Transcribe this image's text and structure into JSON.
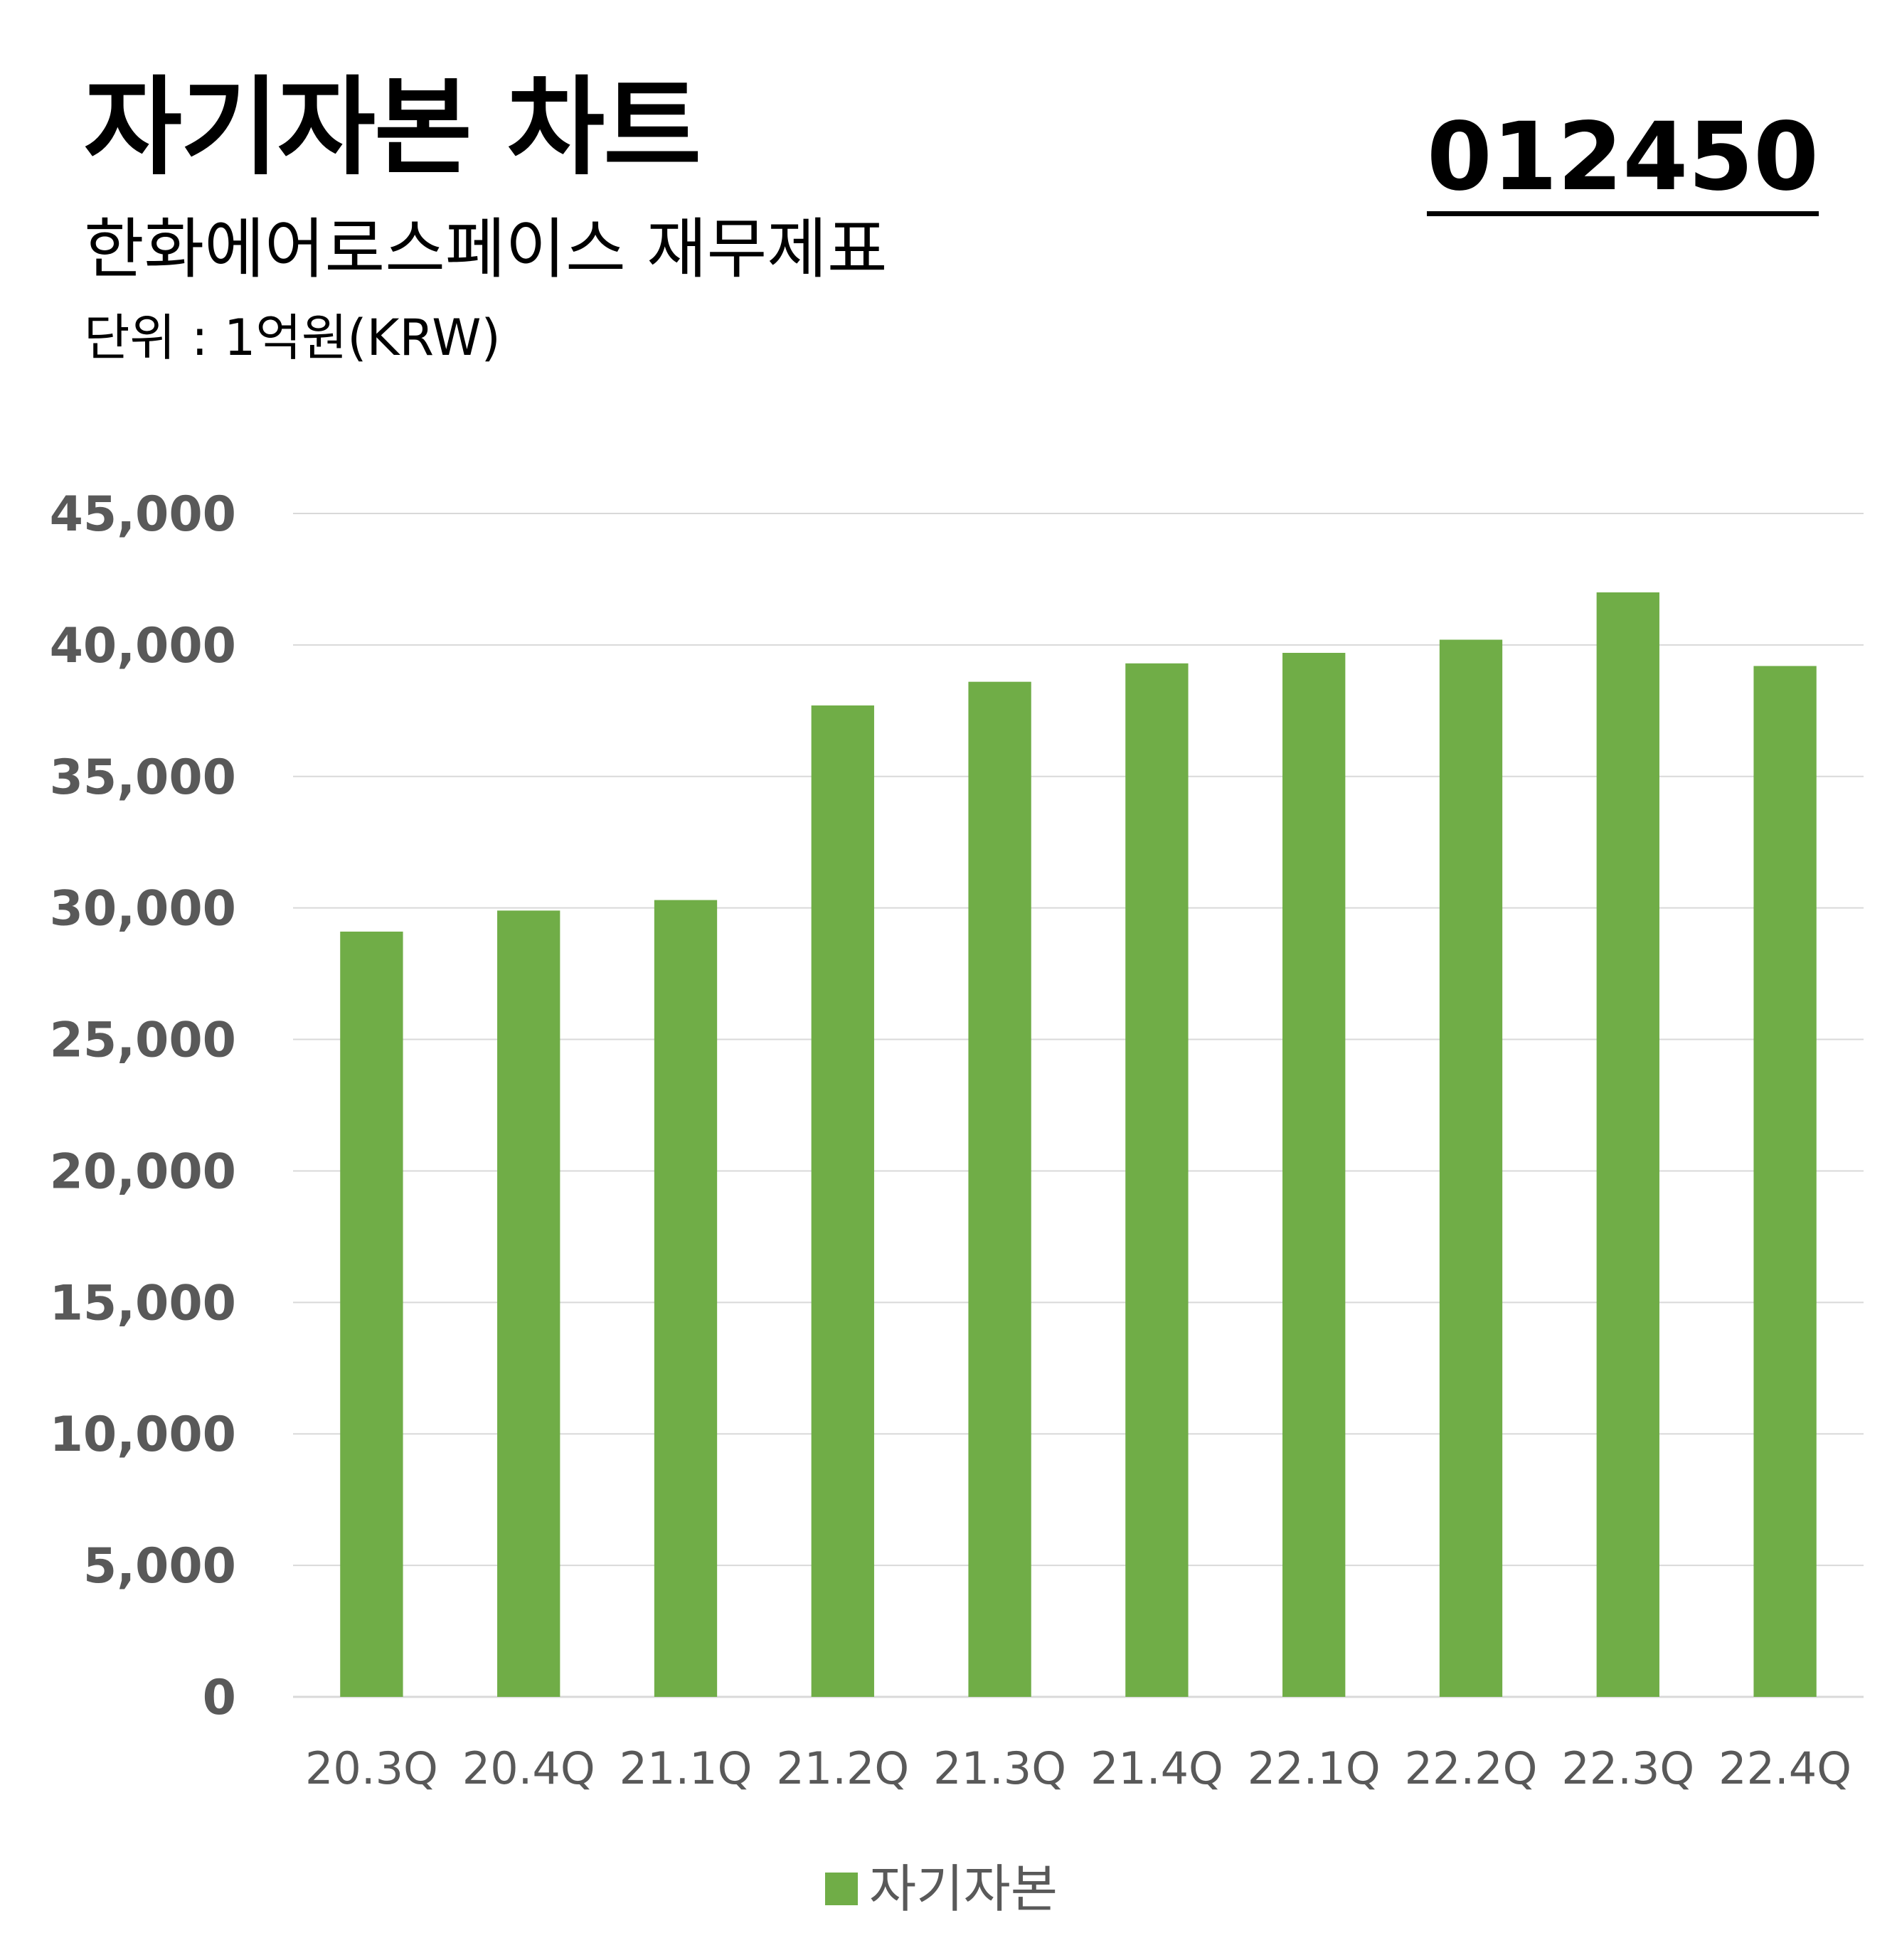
{
  "header": {
    "title": "자기자본 차트",
    "subtitle": "한화에어로스페이스 재무제표",
    "unit": "단위 : 1억원(KRW)",
    "code": "012450"
  },
  "colors": {
    "bar": "#70ad47",
    "grid": "#d9d9d9",
    "tick_text": "#595959",
    "text": "#000000"
  },
  "chart_data": {
    "type": "bar",
    "title": "자기자본 차트",
    "categories": [
      "20.3Q",
      "20.4Q",
      "21.1Q",
      "21.2Q",
      "21.3Q",
      "21.4Q",
      "22.1Q",
      "22.2Q",
      "22.3Q",
      "22.4Q"
    ],
    "series": [
      {
        "name": "자기자본",
        "values": [
          29100,
          29900,
          30300,
          37700,
          38600,
          39300,
          39700,
          40200,
          42000,
          39200
        ]
      }
    ],
    "ylim": [
      0,
      45000
    ],
    "yticks": [
      0,
      5000,
      10000,
      15000,
      20000,
      25000,
      30000,
      35000,
      40000,
      45000
    ],
    "ytick_labels": [
      "0",
      "5,000",
      "10,000",
      "15,000",
      "20,000",
      "25,000",
      "30,000",
      "35,000",
      "40,000",
      "45,000"
    ],
    "xlabel": "",
    "ylabel": "",
    "grid": true,
    "legend": "bottom"
  }
}
